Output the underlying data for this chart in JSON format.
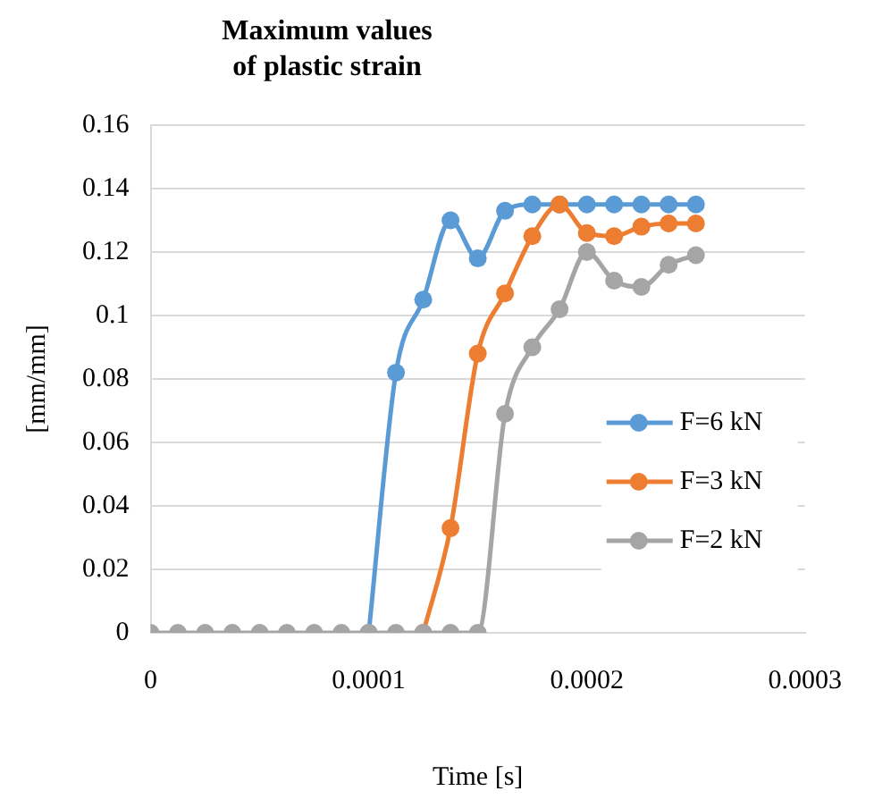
{
  "chart_data": {
    "type": "line",
    "title": "Maximum values\nof plastic strain",
    "xlabel": "Time [s]",
    "ylabel": "[mm/mm]",
    "x": [
      0,
      1.25e-05,
      2.5e-05,
      3.75e-05,
      5e-05,
      6.25e-05,
      7.5e-05,
      8.75e-05,
      0.0001,
      0.0001125,
      0.000125,
      0.0001375,
      0.00015,
      0.0001625,
      0.000175,
      0.0001875,
      0.0002,
      0.0002125,
      0.000225,
      0.0002375,
      0.00025
    ],
    "series": [
      {
        "name": "F=6 kN",
        "color": "#5b9bd5",
        "values": [
          null,
          null,
          null,
          null,
          null,
          null,
          null,
          null,
          0,
          0.082,
          0.105,
          0.13,
          0.118,
          0.133,
          0.135,
          0.135,
          0.135,
          0.135,
          0.135,
          0.135,
          0.135
        ]
      },
      {
        "name": "F=3 kN",
        "color": "#ed7d31",
        "values": [
          null,
          null,
          null,
          null,
          null,
          null,
          null,
          null,
          null,
          null,
          0,
          0.033,
          0.088,
          0.107,
          0.125,
          0.135,
          0.126,
          0.125,
          0.128,
          0.129,
          0.129
        ]
      },
      {
        "name": "F=2 kN",
        "color": "#a5a5a5",
        "values": [
          0,
          0,
          0,
          0,
          0,
          0,
          0,
          0,
          0,
          0,
          0,
          0,
          0,
          0.069,
          0.09,
          0.102,
          0.12,
          0.111,
          0.109,
          0.116,
          0.119
        ]
      }
    ],
    "xlim": [
      0,
      0.0003
    ],
    "xticks": [
      0,
      0.0001,
      0.0002,
      0.0003
    ],
    "ylim": [
      0,
      0.16
    ],
    "yticks": [
      0,
      0.02,
      0.04,
      0.06,
      0.08,
      0.1,
      0.12,
      0.14,
      0.16
    ],
    "grid": "y",
    "legend": "right",
    "marker": "circle",
    "line_style": "solid"
  }
}
